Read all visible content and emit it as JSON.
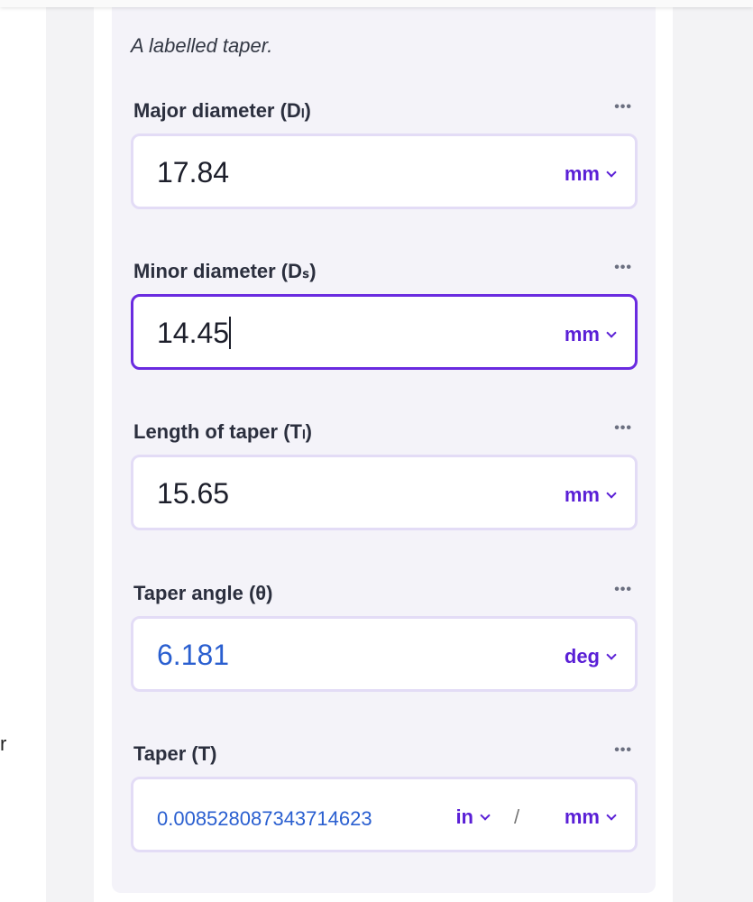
{
  "description": "A labelled taper.",
  "stray_text": "r",
  "fields": [
    {
      "label": "Major diameter (Dₗ)",
      "value": "17.84",
      "unit": "mm"
    },
    {
      "label": "Minor diameter (Dₛ)",
      "value": "14.45",
      "unit": "mm"
    },
    {
      "label": "Length of taper (Tₗ)",
      "value": "15.65",
      "unit": "mm"
    },
    {
      "label": "Taper angle (θ)",
      "value": "6.181",
      "unit": "deg"
    },
    {
      "label": "Taper (T)",
      "value": "0.008528087343714623",
      "unit_num": "in",
      "separator": "/",
      "unit_den": "mm"
    }
  ],
  "more_label": "•••",
  "colors": {
    "accent": "#5a1fd6",
    "calculated": "#2a5fd0",
    "panel": "#f4f3f9"
  }
}
